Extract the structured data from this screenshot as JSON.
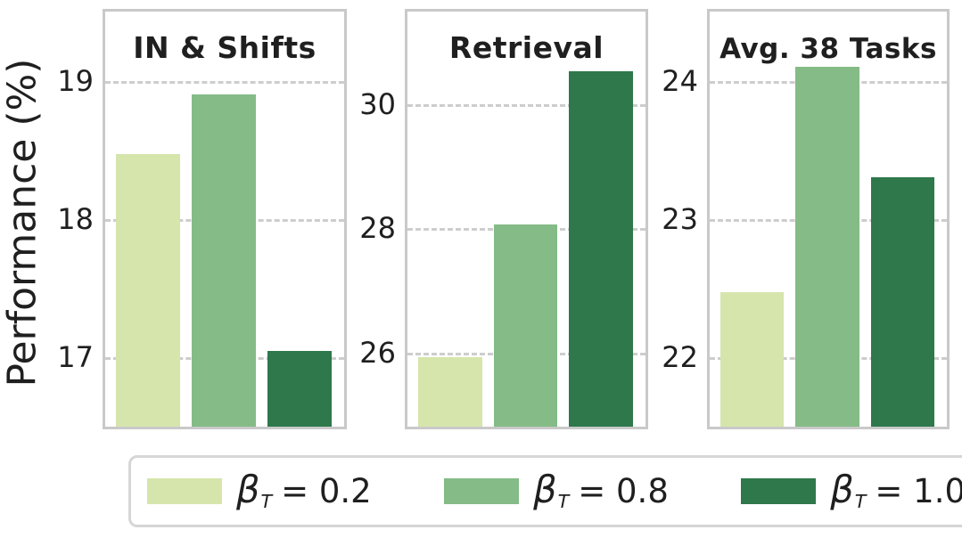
{
  "figure": {
    "ylabel": "Performance (%)"
  },
  "colors": {
    "series": [
      "#d6e5ac",
      "#84bb86",
      "#2e784b"
    ],
    "grid": "#cdcdcd",
    "panel_border": "#c9c9c9",
    "legend_border": "#d6d6d6",
    "text": "#1f1f1f",
    "background": "#ffffff"
  },
  "legend": {
    "items": [
      {
        "symbol": "β",
        "subscript": "T",
        "value": "= 0.2"
      },
      {
        "symbol": "β",
        "subscript": "T",
        "value": "= 0.8"
      },
      {
        "symbol": "β",
        "subscript": "T",
        "value": "= 1.0"
      }
    ]
  },
  "chart_data": [
    {
      "type": "bar",
      "title": "IN & Shifts",
      "categories": [
        "βT = 0.2",
        "βT = 0.8",
        "βT = 1.0"
      ],
      "values": [
        18.47,
        18.9,
        17.05
      ],
      "ylabel": "Performance (%)",
      "ylim": [
        16.5,
        19.5
      ],
      "yticks": [
        17,
        18,
        19
      ],
      "grid": "dashed-horizontal",
      "legend_position": "bottom"
    },
    {
      "type": "bar",
      "title": "Retrieval",
      "categories": [
        "βT = 0.2",
        "βT = 0.8",
        "βT = 1.0"
      ],
      "values": [
        25.92,
        28.07,
        30.53
      ],
      "ylim": [
        24.8,
        31.5
      ],
      "yticks": [
        26,
        28,
        30
      ],
      "grid": "dashed-horizontal"
    },
    {
      "type": "bar",
      "title": "Avg. 38 Tasks",
      "categories": [
        "βT = 0.2",
        "βT = 0.8",
        "βT = 1.0"
      ],
      "values": [
        22.47,
        24.1,
        23.3
      ],
      "ylim": [
        21.5,
        24.5
      ],
      "yticks": [
        22,
        23,
        24
      ],
      "grid": "dashed-horizontal"
    }
  ]
}
